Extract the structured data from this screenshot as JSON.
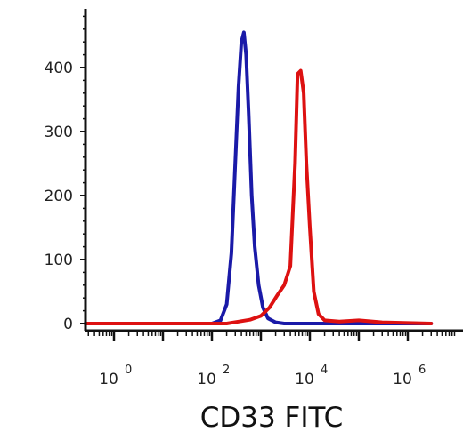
{
  "chart_data": {
    "type": "line",
    "xlabel": "CD33 FITC",
    "ylabel": "",
    "x_scale": "log",
    "xlim": [
      0.1,
      3000000
    ],
    "ylim": [
      -10,
      480
    ],
    "x_ticks": [
      {
        "value": 1,
        "base": "10",
        "exp": "0"
      },
      {
        "value": 100,
        "base": "10",
        "exp": "2"
      },
      {
        "value": 10000,
        "base": "10",
        "exp": "4"
      },
      {
        "value": 1000000,
        "base": "10",
        "exp": "6"
      }
    ],
    "y_ticks": [
      0,
      100,
      200,
      300,
      400
    ],
    "series": [
      {
        "color": "#1a1aa8",
        "x": [
          0.1,
          100,
          150,
          200,
          250,
          300,
          350,
          400,
          450,
          500,
          560,
          650,
          750,
          900,
          1100,
          1400,
          2000,
          3000,
          5000,
          3000000
        ],
        "y": [
          0,
          0,
          5,
          30,
          110,
          250,
          370,
          440,
          455,
          420,
          330,
          200,
          120,
          60,
          25,
          8,
          2,
          0,
          0,
          0
        ]
      },
      {
        "color": "#dd1111",
        "x": [
          0.1,
          200,
          350,
          600,
          1000,
          1500,
          2200,
          3000,
          4000,
          5000,
          5600,
          6500,
          7500,
          8500,
          10000,
          12000,
          15000,
          20000,
          40000,
          100000,
          300000,
          3000000
        ],
        "y": [
          0,
          0,
          3,
          6,
          12,
          25,
          45,
          60,
          90,
          250,
          390,
          395,
          360,
          250,
          150,
          50,
          15,
          5,
          3,
          5,
          2,
          0
        ]
      }
    ]
  }
}
